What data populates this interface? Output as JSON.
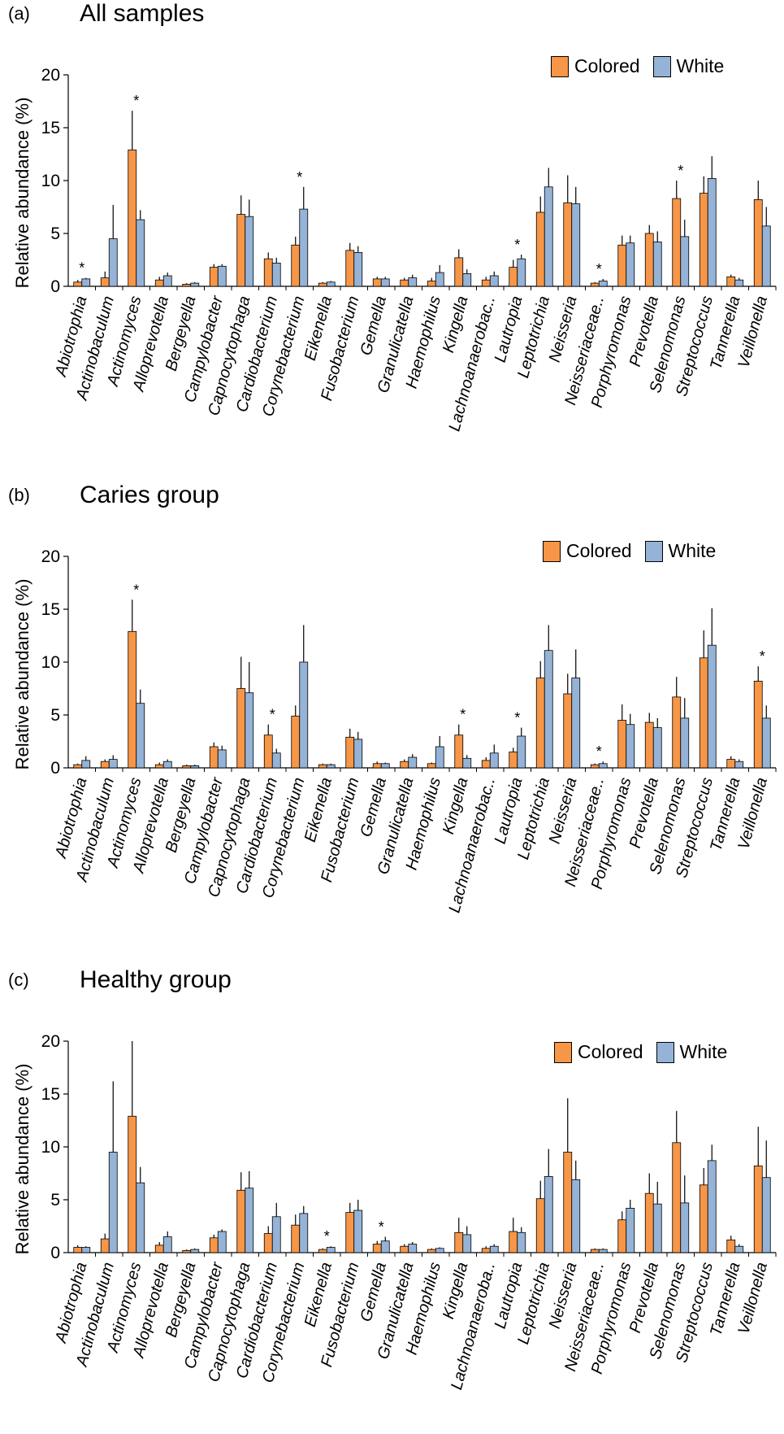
{
  "colors": {
    "colored": "#F79646",
    "white": "#95B3D7",
    "error": "#000000"
  },
  "chart_data": [
    {
      "type": "bar",
      "panel_letter": "(a)",
      "title": "All samples",
      "ylabel": "Relative abundance (%)",
      "ylim": [
        0,
        20
      ],
      "yticks": [
        "0",
        "5",
        "10",
        "15",
        "20"
      ],
      "legend_placement": "top-right",
      "categories": [
        "Abiotrophia",
        "Actinobaculum",
        "Actinomyces",
        "Alloprevotella",
        "Bergeyella",
        "Campylobacter",
        "Capnocytophaga",
        "Cardiobacterium",
        "Corynebacterium",
        "Eikenella",
        "Fusobacterium",
        "Gemella",
        "Granulicatella",
        "Haemophilus",
        "Kingella",
        "Lachnoanaerobac..",
        "Lautropia",
        "Leptotrichia",
        "Neisseria",
        "Neisseriaceae..",
        "Porphyromonas",
        "Prevotella",
        "Selenomonas",
        "Streptococcus",
        "Tannerella",
        "Veillonella"
      ],
      "series": [
        {
          "name": "Colored",
          "values": [
            0.4,
            0.8,
            12.9,
            0.6,
            0.2,
            1.8,
            6.8,
            2.6,
            3.9,
            0.3,
            3.4,
            0.7,
            0.6,
            0.5,
            2.7,
            0.6,
            1.8,
            7.0,
            7.9,
            0.3,
            3.9,
            5.0,
            8.3,
            8.8,
            0.9,
            8.2
          ],
          "errors": [
            0.2,
            0.6,
            3.7,
            0.3,
            0.1,
            0.3,
            1.8,
            0.6,
            0.8,
            0.1,
            0.7,
            0.2,
            0.2,
            0.3,
            0.8,
            0.3,
            0.7,
            1.5,
            2.6,
            0.1,
            0.9,
            0.8,
            1.7,
            1.6,
            0.2,
            1.8
          ]
        },
        {
          "name": "White",
          "values": [
            0.7,
            4.5,
            6.3,
            1.0,
            0.3,
            1.9,
            6.6,
            2.2,
            7.3,
            0.4,
            3.2,
            0.7,
            0.8,
            1.3,
            1.2,
            1.0,
            2.6,
            9.4,
            7.8,
            0.5,
            4.1,
            4.2,
            4.7,
            10.2,
            0.6,
            5.7
          ],
          "errors": [
            0.1,
            3.2,
            0.9,
            0.3,
            0.1,
            0.2,
            1.6,
            0.5,
            2.1,
            0.1,
            0.6,
            0.2,
            0.3,
            0.7,
            0.4,
            0.4,
            0.4,
            1.8,
            1.6,
            0.2,
            0.7,
            1.0,
            1.6,
            2.1,
            0.2,
            1.8
          ]
        }
      ],
      "significant": [
        0,
        2,
        8,
        16,
        19,
        22
      ],
      "significance_marker": "*"
    },
    {
      "type": "bar",
      "panel_letter": "(b)",
      "title": "Caries group",
      "ylabel": "Relative abundance (%)",
      "ylim": [
        0,
        20
      ],
      "yticks": [
        "0",
        "5",
        "10",
        "15",
        "20"
      ],
      "legend_placement": "top-right",
      "categories": [
        "Abiotrophia",
        "Actinobaculum",
        "Actinomyces",
        "Alloprevotella",
        "Bergeyella",
        "Campylobacter",
        "Capnocytophaga",
        "Cardiobacterium",
        "Corynebacterium",
        "Eikenella",
        "Fusobacterium",
        "Gemella",
        "Granulicatella",
        "Haemophilus",
        "Kingella",
        "Lachnoanaerobac..",
        "Lautropia",
        "Leptotrichia",
        "Neisseria",
        "Neisseriaceae..",
        "Porphyromonas",
        "Prevotella",
        "Selenomonas",
        "Streptococcus",
        "Tannerella",
        "Veillonella"
      ],
      "series": [
        {
          "name": "Colored",
          "values": [
            0.3,
            0.6,
            12.9,
            0.3,
            0.2,
            2.0,
            7.5,
            3.1,
            4.9,
            0.3,
            2.9,
            0.4,
            0.6,
            0.4,
            3.1,
            0.7,
            1.5,
            8.5,
            7.0,
            0.3,
            4.5,
            4.3,
            6.7,
            10.4,
            0.8,
            8.2
          ],
          "errors": [
            0.1,
            0.2,
            3.0,
            0.2,
            0.1,
            0.4,
            3.0,
            1.0,
            1.0,
            0.1,
            0.8,
            0.2,
            0.2,
            0.1,
            1.0,
            0.3,
            0.4,
            1.6,
            1.9,
            0.1,
            1.5,
            0.9,
            1.9,
            2.6,
            0.3,
            1.4
          ]
        },
        {
          "name": "White",
          "values": [
            0.7,
            0.8,
            6.1,
            0.6,
            0.2,
            1.7,
            7.1,
            1.4,
            10.0,
            0.3,
            2.7,
            0.4,
            1.0,
            2.0,
            0.9,
            1.4,
            3.0,
            11.1,
            8.5,
            0.4,
            4.1,
            3.8,
            4.7,
            11.6,
            0.6,
            4.7
          ],
          "errors": [
            0.4,
            0.4,
            1.3,
            0.2,
            0.1,
            0.4,
            2.9,
            0.4,
            3.5,
            0.1,
            0.7,
            0.1,
            0.3,
            1.0,
            0.3,
            0.8,
            0.8,
            2.4,
            2.7,
            0.2,
            1.0,
            0.9,
            1.9,
            3.5,
            0.2,
            1.2
          ]
        }
      ],
      "significant": [
        2,
        7,
        14,
        16,
        19,
        25
      ],
      "significance_marker": "*"
    },
    {
      "type": "bar",
      "panel_letter": "(c)",
      "title": "Healthy group",
      "ylabel": "Relative abundance (%)",
      "ylim": [
        0,
        20
      ],
      "yticks": [
        "0",
        "5",
        "10",
        "15",
        "20"
      ],
      "legend_placement": "top-right",
      "categories": [
        "Abiotrophia",
        "Actinobaculum",
        "Actinomyces",
        "Alloprevotella",
        "Bergeyella",
        "Campylobacter",
        "Capnocytophaga",
        "Cardiobacterium",
        "Corynebacterium",
        "Eikenella",
        "Fusobacterium",
        "Gemella",
        "Granulicatella",
        "Haemophilus",
        "Kingella",
        "Lachnoanaeroba..",
        "Lautropia",
        "Leptotrichia",
        "Neisseria",
        "Neisseriaceae..",
        "Porphyromonas",
        "Prevotella",
        "Selenomonas",
        "Streptococcus",
        "Tannerella",
        "Veillonella"
      ],
      "series": [
        {
          "name": "Colored",
          "values": [
            0.5,
            1.3,
            12.9,
            0.7,
            0.2,
            1.4,
            5.9,
            1.8,
            2.6,
            0.3,
            3.8,
            0.8,
            0.6,
            0.3,
            1.9,
            0.4,
            2.0,
            5.1,
            9.5,
            0.3,
            3.1,
            5.6,
            10.4,
            6.4,
            1.2,
            8.2
          ],
          "errors": [
            0.2,
            0.5,
            7.1,
            0.3,
            0.1,
            0.3,
            1.7,
            0.7,
            1.0,
            0.1,
            0.9,
            0.3,
            0.2,
            0.1,
            1.4,
            0.2,
            1.3,
            1.7,
            5.1,
            0.1,
            0.8,
            1.9,
            3.0,
            1.6,
            0.4,
            3.7
          ]
        },
        {
          "name": "White",
          "values": [
            0.5,
            9.5,
            6.6,
            1.5,
            0.3,
            2.0,
            6.1,
            3.4,
            3.7,
            0.5,
            4.0,
            1.1,
            0.8,
            0.4,
            1.7,
            0.6,
            1.9,
            7.2,
            6.9,
            0.3,
            4.2,
            4.6,
            4.7,
            8.7,
            0.6,
            7.1
          ],
          "errors": [
            0.1,
            6.7,
            1.5,
            0.5,
            0.1,
            0.2,
            1.6,
            1.3,
            0.7,
            0.1,
            1.0,
            0.4,
            0.2,
            0.1,
            0.8,
            0.2,
            0.5,
            2.6,
            1.8,
            0.1,
            0.8,
            2.1,
            2.6,
            1.5,
            0.2,
            3.5
          ]
        }
      ],
      "significant": [
        9,
        11
      ],
      "significance_marker": "*"
    }
  ]
}
